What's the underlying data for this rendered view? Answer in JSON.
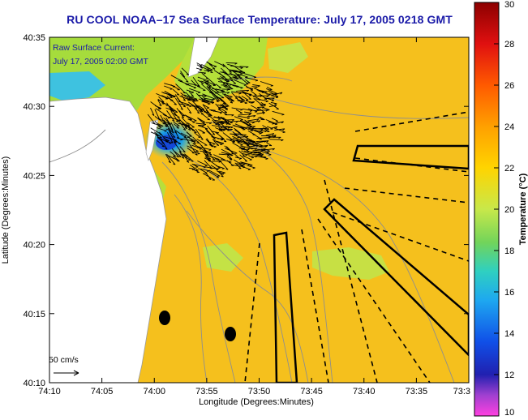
{
  "title": "RU COOL  NOAA–17  Sea Surface Temperature:  July 17, 2005 0218 GMT",
  "current_label_line1": "Raw Surface Current:",
  "current_label_line2": "July 17, 2005 02:00 GMT",
  "scale_label": "50 cm/s",
  "x_axis": {
    "label": "Longitude (Degrees:Minutes)",
    "ticks": [
      "74:10",
      "74:05",
      "74:00",
      "73:55",
      "73:50",
      "73:45",
      "73:40",
      "73:35",
      "73:3"
    ]
  },
  "y_axis": {
    "label": "Latitude (Degrees:Minutes)",
    "ticks": [
      "40:35",
      "40:30",
      "40:25",
      "40:20",
      "40:15",
      "40:10"
    ]
  },
  "colorbar": {
    "label": "Temperature (°C)",
    "ticks": [
      "30",
      "28",
      "26",
      "24",
      "22",
      "20",
      "18",
      "16",
      "14",
      "12",
      "10"
    ]
  },
  "colors": {
    "title": "#1a1aa8",
    "land": "#ffffff",
    "water_dominant": "#f6c21c",
    "water_cool": "#a3dc3a",
    "water_cold": "#2fb8e8",
    "contour": "#8e8e8e",
    "vectors": "#000000",
    "outlines": "#000000"
  }
}
